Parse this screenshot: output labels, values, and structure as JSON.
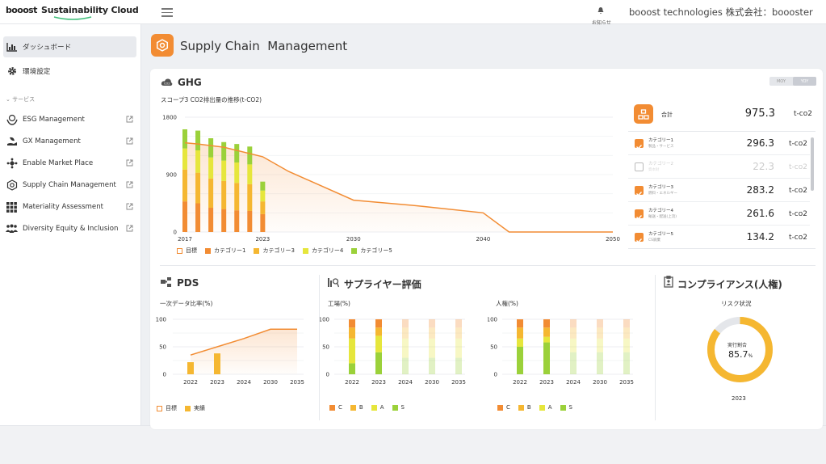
{
  "header": {
    "logo_booost": "booost",
    "logo_product": "Sustainability Cloud",
    "notice_label": "お知らせ",
    "company": "booost technologies 株式会社：boooster"
  },
  "sidebar": {
    "items": [
      {
        "label": "ダッシュボード",
        "icon": "bar-chart-icon",
        "active": true
      },
      {
        "label": "環境設定",
        "icon": "gear-icon"
      }
    ],
    "section_label": "サービス",
    "services": [
      {
        "label": "ESG Management",
        "icon": "hands-globe-icon"
      },
      {
        "label": "GX Management",
        "icon": "hand-leaf-icon"
      },
      {
        "label": "Enable Market Place",
        "icon": "network-icon"
      },
      {
        "label": "Supply Chain Management",
        "icon": "hexagon-gear-icon"
      },
      {
        "label": "Materiality Assessment",
        "icon": "grid-icon"
      },
      {
        "label": "Diversity Equity & Inclusion",
        "icon": "people-icon"
      }
    ]
  },
  "page": {
    "title": "Supply Chain  Management"
  },
  "ghg": {
    "title": "GHG",
    "subtitle": "スコープ3 CO2排出量の推移(t-CO2)",
    "toggle": [
      "MOY",
      "YOY"
    ],
    "legend": [
      "目標",
      "カテゴリー1",
      "カテゴリー3",
      "カテゴリー4",
      "カテゴリー5"
    ],
    "total_label": "合計",
    "total_value": "975.3",
    "unit": "t-co2",
    "categories": [
      {
        "name": "カテゴリー1",
        "sub": "製品・サービス",
        "value": "296.3",
        "checked": true
      },
      {
        "name": "カテゴリー2",
        "sub": "資本財",
        "value": "22.3",
        "checked": false
      },
      {
        "name": "カテゴリー3",
        "sub": "燃料・エネルギー",
        "value": "283.2",
        "checked": true
      },
      {
        "name": "カテゴリー4",
        "sub": "輸送・配送(上流)",
        "value": "261.6",
        "checked": true
      },
      {
        "name": "カテゴリー5",
        "sub": "CS廃棄",
        "value": "134.2",
        "checked": true
      }
    ]
  },
  "pds": {
    "title": "PDS",
    "subtitle": "一次データ比率(%)",
    "legend": [
      "目標",
      "実績"
    ]
  },
  "supplier": {
    "title": "サプライヤー評価",
    "factory_label": "工場(%)",
    "human_label": "人権(%)",
    "legend": [
      "C",
      "B",
      "A",
      "S"
    ]
  },
  "compliance": {
    "title": "コンプライアンス(人権)",
    "risk_label": "リスク状況",
    "center_label": "実行割合",
    "value": "85.7",
    "unit": "%",
    "year": "2023"
  },
  "colors": {
    "orange": "#f28c33",
    "cat1": "#f28c33",
    "cat3": "#f5b731",
    "cat4": "#e6e63c",
    "cat5": "#9bd13a",
    "donut_track": "#e4e6ea"
  },
  "chart_data": [
    {
      "type": "bar",
      "title": "スコープ3 CO2排出量の推移(t-CO2)",
      "x_ticks": [
        "2017",
        "2023",
        "2030",
        "2040",
        "2050"
      ],
      "y_ticks": [
        "0",
        "900",
        "1800"
      ],
      "ylim": [
        0,
        1800
      ],
      "categories": [
        "2017",
        "2018",
        "2019",
        "2020",
        "2021",
        "2022",
        "2023"
      ],
      "series": [
        {
          "name": "カテゴリー1",
          "values": [
            480,
            450,
            380,
            360,
            340,
            330,
            280
          ]
        },
        {
          "name": "カテゴリー3",
          "values": [
            500,
            480,
            460,
            440,
            430,
            420,
            200
          ]
        },
        {
          "name": "カテゴリー4",
          "values": [
            330,
            350,
            330,
            320,
            320,
            310,
            170
          ]
        },
        {
          "name": "カテゴリー5",
          "values": [
            300,
            310,
            300,
            290,
            290,
            280,
            140
          ]
        }
      ],
      "target_line": {
        "name": "目標",
        "x": [
          2017,
          2018,
          2020,
          2023,
          2025,
          2030,
          2035,
          2040,
          2042,
          2050
        ],
        "y": [
          1400,
          1380,
          1330,
          1180,
          950,
          500,
          410,
          300,
          0,
          0
        ]
      }
    },
    {
      "type": "line",
      "title": "一次データ比率(%)",
      "categories": [
        "2022",
        "2023",
        "2024",
        "2030",
        "2035"
      ],
      "y_ticks": [
        "0",
        "50",
        "100"
      ],
      "ylim": [
        0,
        100
      ],
      "series": [
        {
          "name": "目標",
          "values": [
            35,
            50,
            65,
            82,
            82
          ]
        },
        {
          "name": "実績",
          "values": [
            22,
            38,
            null,
            null,
            null
          ]
        }
      ]
    },
    {
      "type": "bar",
      "title": "工場(%)",
      "categories": [
        "2022",
        "2023",
        "2024",
        "2030",
        "2035"
      ],
      "y_ticks": [
        "0",
        "50",
        "100"
      ],
      "ylim": [
        0,
        100
      ],
      "series": [
        {
          "name": "S",
          "values": [
            20,
            40,
            30,
            30,
            30
          ]
        },
        {
          "name": "A",
          "values": [
            45,
            30,
            35,
            35,
            35
          ]
        },
        {
          "name": "B",
          "values": [
            20,
            15,
            20,
            20,
            20
          ]
        },
        {
          "name": "C",
          "values": [
            15,
            15,
            15,
            15,
            15
          ]
        }
      ]
    },
    {
      "type": "bar",
      "title": "人権(%)",
      "categories": [
        "2022",
        "2023",
        "2024",
        "2030",
        "2035"
      ],
      "y_ticks": [
        "0",
        "50",
        "100"
      ],
      "ylim": [
        0,
        100
      ],
      "series": [
        {
          "name": "S",
          "values": [
            50,
            58,
            40,
            40,
            40
          ]
        },
        {
          "name": "A",
          "values": [
            15,
            10,
            25,
            25,
            25
          ]
        },
        {
          "name": "B",
          "values": [
            20,
            17,
            20,
            20,
            20
          ]
        },
        {
          "name": "C",
          "values": [
            15,
            15,
            15,
            15,
            15
          ]
        }
      ]
    },
    {
      "type": "pie",
      "title": "リスク状況",
      "values": [
        85.7,
        14.3
      ]
    }
  ]
}
